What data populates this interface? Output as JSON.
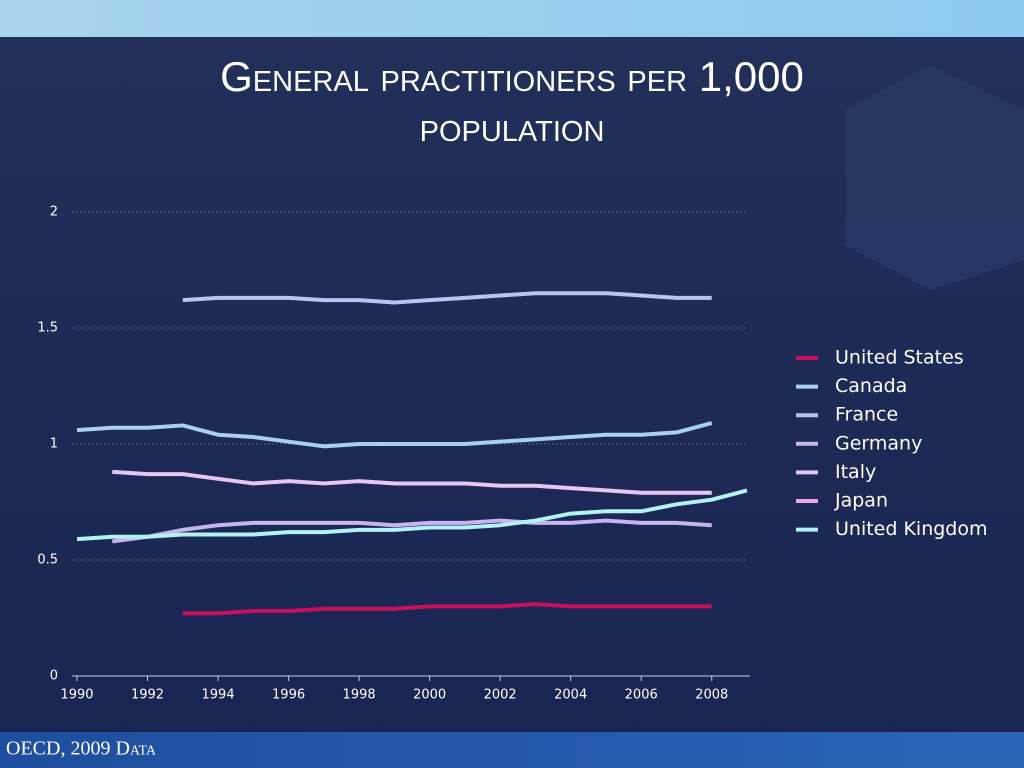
{
  "chart_data": {
    "type": "line",
    "title": "General practitioners per 1,000 population",
    "source": "OECD, 2009 Data",
    "x": [
      1990,
      1991,
      1992,
      1993,
      1994,
      1995,
      1996,
      1997,
      1998,
      1999,
      2000,
      2001,
      2002,
      2003,
      2004,
      2005,
      2006,
      2007,
      2008,
      2009
    ],
    "xlim": [
      1990,
      2009
    ],
    "xticks": [
      1990,
      1992,
      1994,
      1996,
      1998,
      2000,
      2002,
      2004,
      2006,
      2008
    ],
    "ylim": [
      0,
      2
    ],
    "yticks": [
      0,
      0.5,
      1,
      1.5,
      2
    ],
    "grid": true,
    "legend": "right",
    "series": [
      {
        "name": "United States",
        "color": "#c8105c",
        "values": [
          null,
          null,
          null,
          0.27,
          0.27,
          0.28,
          0.28,
          0.29,
          0.29,
          0.29,
          0.3,
          0.3,
          0.3,
          0.31,
          0.3,
          0.3,
          0.3,
          0.3,
          0.3,
          null
        ]
      },
      {
        "name": "Canada",
        "color": "#a8d0f4",
        "values": [
          1.06,
          1.07,
          1.07,
          1.08,
          1.04,
          1.03,
          1.01,
          0.99,
          1.0,
          1.0,
          1.0,
          1.0,
          1.01,
          1.02,
          1.03,
          1.04,
          1.04,
          1.05,
          1.09,
          null
        ]
      },
      {
        "name": "France",
        "color": "#b8c4f6",
        "values": [
          null,
          null,
          null,
          1.62,
          1.63,
          1.63,
          1.63,
          1.62,
          1.62,
          1.61,
          1.62,
          1.63,
          1.64,
          1.65,
          1.65,
          1.65,
          1.64,
          1.63,
          1.63,
          null
        ]
      },
      {
        "name": "Germany",
        "color": "#c8b4f0",
        "values": [
          null,
          0.58,
          0.6,
          0.63,
          0.65,
          0.66,
          0.66,
          0.66,
          0.66,
          0.65,
          0.66,
          0.66,
          0.67,
          0.66,
          0.66,
          0.67,
          0.66,
          0.66,
          0.65,
          null
        ]
      },
      {
        "name": "Italy",
        "color": "#e6c6f2",
        "values": [
          null,
          0.88,
          0.87,
          0.87,
          0.85,
          0.83,
          0.84,
          0.83,
          0.84,
          0.83,
          0.83,
          0.83,
          0.82,
          0.82,
          0.81,
          0.8,
          0.79,
          0.79,
          0.79,
          null
        ]
      },
      {
        "name": "Japan",
        "color": "#eaa8e2",
        "values": [
          null,
          null,
          null,
          null,
          null,
          null,
          null,
          null,
          null,
          null,
          null,
          null,
          null,
          null,
          null,
          null,
          null,
          null,
          null,
          null
        ]
      },
      {
        "name": "United Kingdom",
        "color": "#b2f2f2",
        "values": [
          0.59,
          0.6,
          0.6,
          0.61,
          0.61,
          0.61,
          0.62,
          0.62,
          0.63,
          0.63,
          0.64,
          0.64,
          0.65,
          0.67,
          0.7,
          0.71,
          0.71,
          0.74,
          0.76,
          0.8
        ]
      }
    ]
  }
}
